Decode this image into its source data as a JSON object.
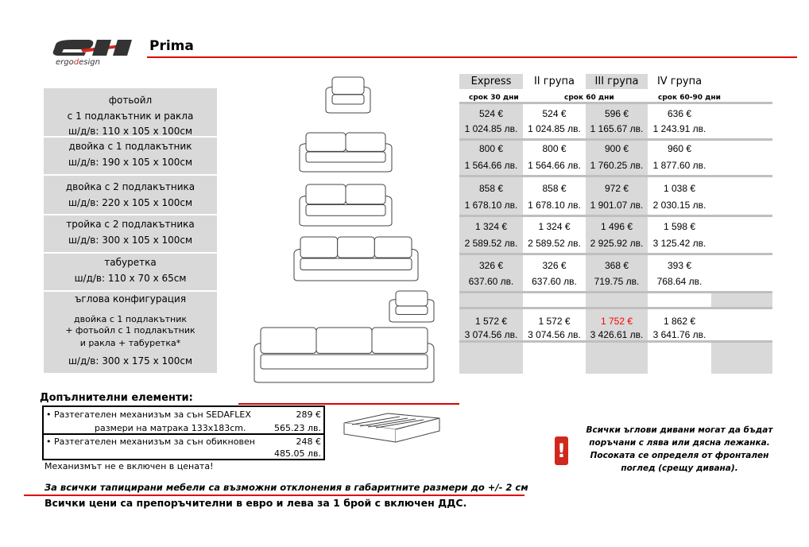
{
  "brand": {
    "logo_text": "ergodesign"
  },
  "title": "Prima",
  "columns": [
    {
      "label": "Express",
      "shaded": true
    },
    {
      "label": "II група",
      "shaded": false
    },
    {
      "label": "III група",
      "shaded": true
    },
    {
      "label": "IV група",
      "shaded": false
    }
  ],
  "terms": [
    "срок 30 дни",
    "срок 60 дни",
    "срок 60-90 дни"
  ],
  "products": [
    {
      "lines": [
        "фотьойл",
        "с 1 подлакътник и ракла",
        "ш/д/в: 110 х 105 х 100см"
      ],
      "prices": [
        [
          "524 €",
          "1 024.85 лв."
        ],
        [
          "524 €",
          "1 024.85 лв."
        ],
        [
          "596 €",
          "1 165.67 лв."
        ],
        [
          "636 €",
          "1 243.91 лв."
        ]
      ]
    },
    {
      "lines": [
        "двойка с 1 подлакътник",
        "ш/д/в: 190 х 105 х 100см"
      ],
      "prices": [
        [
          "800 €",
          "1 564.66 лв."
        ],
        [
          "800 €",
          "1 564.66 лв."
        ],
        [
          "900 €",
          "1 760.25 лв."
        ],
        [
          "960 €",
          "1 877.60 лв."
        ]
      ]
    },
    {
      "lines": [
        "двойка с 2 подлакътника",
        "ш/д/в: 220 х 105 х 100см"
      ],
      "prices": [
        [
          "858 €",
          "1 678.10 лв."
        ],
        [
          "858 €",
          "1 678.10 лв."
        ],
        [
          "972 €",
          "1 901.07 лв."
        ],
        [
          "1 038 €",
          "2 030.15 лв."
        ]
      ]
    },
    {
      "lines": [
        "тройка с 2 подлакътника",
        "ш/д/в: 300 х 105 х 100см"
      ],
      "prices": [
        [
          "1 324 €",
          "2 589.52 лв."
        ],
        [
          "1 324 €",
          "2 589.52 лв."
        ],
        [
          "1 496 €",
          "2 925.92 лв."
        ],
        [
          "1 598 €",
          "3 125.42 лв."
        ]
      ]
    },
    {
      "lines": [
        "табуретка",
        "ш/д/в: 110 х 70 х 65см"
      ],
      "prices": [
        [
          "326 €",
          "637.60 лв."
        ],
        [
          "326 €",
          "637.60 лв."
        ],
        [
          "368 €",
          "719.75 лв."
        ],
        [
          "393 €",
          "768.64 лв."
        ]
      ]
    },
    {
      "lines": [
        "ъглова конфигурация",
        "двойка с 1 подлакътник",
        "+ фотьойл с 1 подлакътник",
        "и ракла + табуретка*",
        "ш/д/в: 300 х 175 х 100см"
      ],
      "prices": [
        [
          "1 572 €",
          "3 074.56 лв."
        ],
        [
          "1 572 €",
          "3 074.56 лв."
        ],
        [
          "1 752 €",
          "3 426.61 лв."
        ],
        [
          "1 862 €",
          "3 641.76 лв."
        ]
      ],
      "highlight": {
        "col": 2,
        "color": "#ff0000"
      }
    }
  ],
  "extras": {
    "heading": "Допълнителни елементи:",
    "items": [
      {
        "name": "• Разтегателен механизъм за сън  SEDAFLEX",
        "detail": "размери на матрака 133x183cm.",
        "eur": "289 €",
        "bgn": "565.23 лв."
      },
      {
        "name": "• Разтегателен механизъм за сън обикновен",
        "detail": "",
        "eur": "248 €",
        "bgn": "485.05 лв."
      }
    ],
    "note": "Механизмът не е включен в цената!"
  },
  "corner_note": [
    "Всички ъглови дивани могат да бъдат",
    "поръчани с лява или дясна лежанка.",
    "Посоката се определя от фронтален",
    "поглед (срещу дивана)."
  ],
  "footer": {
    "tolerance": "За всички тапицирани мебели са възможни отклонения в габаритните размери до +/- 2 см",
    "prices_note": "Всички цени са препоръчителни в евро и лева за 1 брой с включен ДДС."
  },
  "colors": {
    "accent": "#e00000",
    "shade": "#d9d9d9",
    "warning": "#d0281c"
  }
}
